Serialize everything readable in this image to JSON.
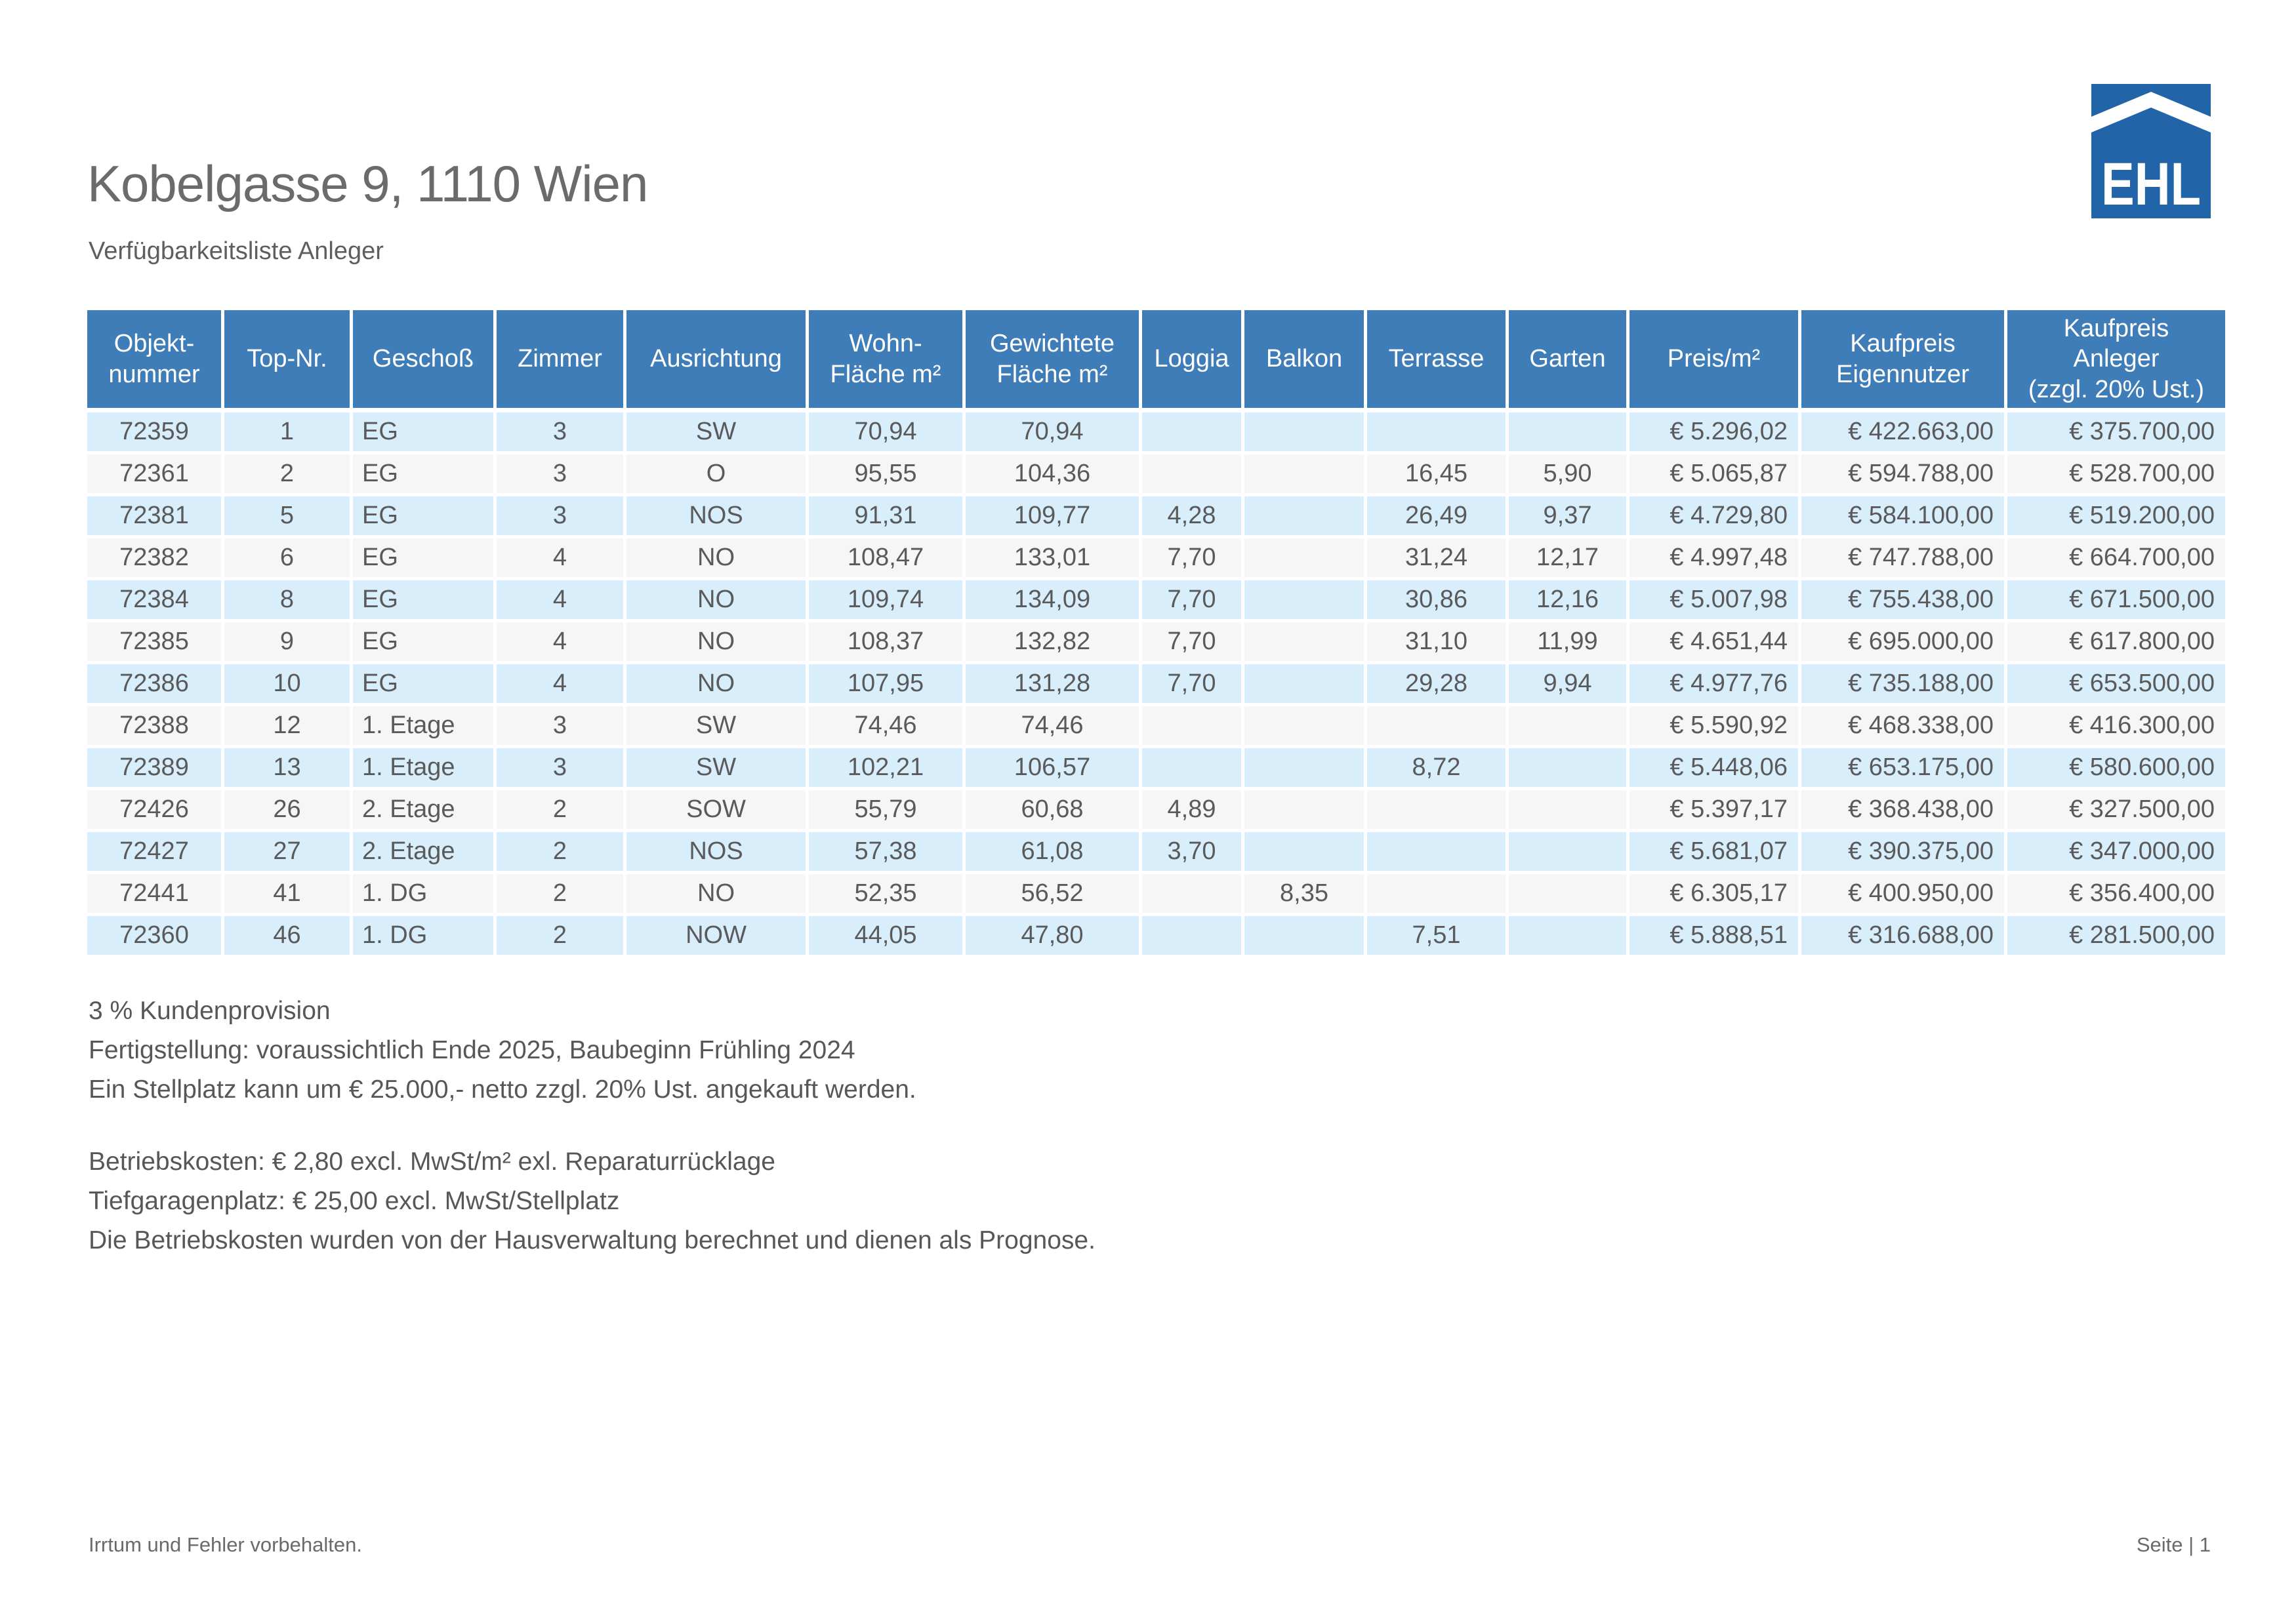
{
  "page": {
    "title": "Kobelgasse 9, 1110 Wien",
    "subtitle": "Verfügbarkeitsliste Anleger",
    "footer_left": "Irrtum und Fehler vorbehalten.",
    "footer_right": "Seite | 1"
  },
  "logo": {
    "text": "EHL",
    "blue": "#2264a8"
  },
  "colors": {
    "header_blue": "#3f7db9",
    "row_blue": "#d8eefb",
    "row_gray": "#f6f6f7"
  },
  "table": {
    "headers": [
      "Objekt-\nnummer",
      "Top-Nr.",
      "Geschoß",
      "Zimmer",
      "Ausrichtung",
      "Wohn-\nFläche m²",
      "Gewichtete\nFläche m²",
      "Loggia",
      "Balkon",
      "Terrasse",
      "Garten",
      "Preis/m²",
      "Kaufpreis\nEigennutzer",
      "Kaufpreis\nAnleger\n(zzgl. 20% Ust.)"
    ],
    "rows": [
      [
        "72359",
        "1",
        "EG",
        "3",
        "SW",
        "70,94",
        "70,94",
        "",
        "",
        "",
        "",
        "€ 5.296,02",
        "€ 422.663,00",
        "€ 375.700,00"
      ],
      [
        "72361",
        "2",
        "EG",
        "3",
        "O",
        "95,55",
        "104,36",
        "",
        "",
        "16,45",
        "5,90",
        "€ 5.065,87",
        "€ 594.788,00",
        "€ 528.700,00"
      ],
      [
        "72381",
        "5",
        "EG",
        "3",
        "NOS",
        "91,31",
        "109,77",
        "4,28",
        "",
        "26,49",
        "9,37",
        "€ 4.729,80",
        "€ 584.100,00",
        "€ 519.200,00"
      ],
      [
        "72382",
        "6",
        "EG",
        "4",
        "NO",
        "108,47",
        "133,01",
        "7,70",
        "",
        "31,24",
        "12,17",
        "€ 4.997,48",
        "€ 747.788,00",
        "€ 664.700,00"
      ],
      [
        "72384",
        "8",
        "EG",
        "4",
        "NO",
        "109,74",
        "134,09",
        "7,70",
        "",
        "30,86",
        "12,16",
        "€ 5.007,98",
        "€ 755.438,00",
        "€ 671.500,00"
      ],
      [
        "72385",
        "9",
        "EG",
        "4",
        "NO",
        "108,37",
        "132,82",
        "7,70",
        "",
        "31,10",
        "11,99",
        "€ 4.651,44",
        "€ 695.000,00",
        "€ 617.800,00"
      ],
      [
        "72386",
        "10",
        "EG",
        "4",
        "NO",
        "107,95",
        "131,28",
        "7,70",
        "",
        "29,28",
        "9,94",
        "€ 4.977,76",
        "€ 735.188,00",
        "€ 653.500,00"
      ],
      [
        "72388",
        "12",
        "1. Etage",
        "3",
        "SW",
        "74,46",
        "74,46",
        "",
        "",
        "",
        "",
        "€ 5.590,92",
        "€ 468.338,00",
        "€ 416.300,00"
      ],
      [
        "72389",
        "13",
        "1. Etage",
        "3",
        "SW",
        "102,21",
        "106,57",
        "",
        "",
        "8,72",
        "",
        "€ 5.448,06",
        "€ 653.175,00",
        "€ 580.600,00"
      ],
      [
        "72426",
        "26",
        "2. Etage",
        "2",
        "SOW",
        "55,79",
        "60,68",
        "4,89",
        "",
        "",
        "",
        "€ 5.397,17",
        "€ 368.438,00",
        "€ 327.500,00"
      ],
      [
        "72427",
        "27",
        "2. Etage",
        "2",
        "NOS",
        "57,38",
        "61,08",
        "3,70",
        "",
        "",
        "",
        "€ 5.681,07",
        "€ 390.375,00",
        "€ 347.000,00"
      ],
      [
        "72441",
        "41",
        "1. DG",
        "2",
        "NO",
        "52,35",
        "56,52",
        "",
        "8,35",
        "",
        "",
        "€ 6.305,17",
        "€ 400.950,00",
        "€ 356.400,00"
      ],
      [
        "72360",
        "46",
        "1. DG",
        "2",
        "NOW",
        "44,05",
        "47,80",
        "",
        "",
        "7,51",
        "",
        "€ 5.888,51",
        "€ 316.688,00",
        "€ 281.500,00"
      ]
    ]
  },
  "notes": {
    "block1": [
      "3 % Kundenprovision",
      "Fertigstellung: voraussichtlich Ende 2025, Baubeginn Frühling 2024",
      "Ein Stellplatz kann um € 25.000,- netto zzgl. 20% Ust. angekauft werden."
    ],
    "block2": [
      "Betriebskosten: € 2,80 excl. MwSt/m² exl. Reparaturrücklage",
      "Tiefgaragenplatz: € 25,00 excl. MwSt/Stellplatz",
      "Die Betriebskosten wurden von der Hausverwaltung berechnet und dienen als Prognose."
    ]
  }
}
